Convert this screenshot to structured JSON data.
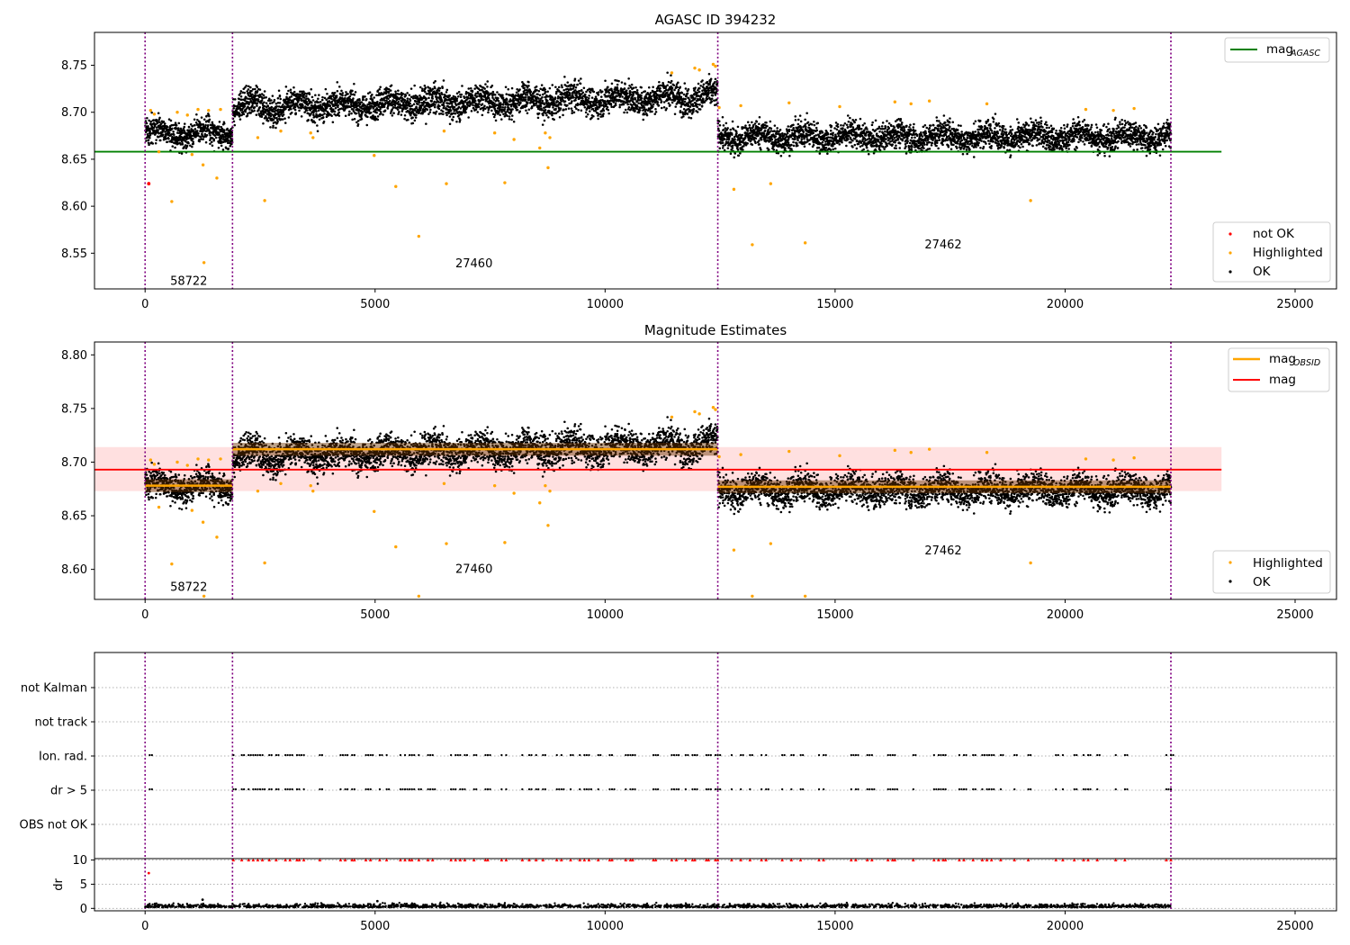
{
  "chart_data": [
    {
      "type": "scatter",
      "title": "AGASC ID 394232",
      "xlim": [
        -1100,
        25900
      ],
      "ylim": [
        8.512,
        8.785
      ],
      "x_ticks": [
        0,
        5000,
        10000,
        15000,
        20000,
        25000
      ],
      "y_ticks": [
        8.55,
        8.6,
        8.65,
        8.7,
        8.75
      ],
      "x_tick_labels": [
        "0",
        "5000",
        "10000",
        "15000",
        "20000",
        "25000"
      ],
      "y_tick_labels": [
        "8.55",
        "8.60",
        "8.65",
        "8.70",
        "8.75"
      ],
      "obsid_boundaries": [
        0,
        1900,
        12450,
        22300
      ],
      "obsid_labels": [
        {
          "text": "58722",
          "x": 950,
          "y": 8.521
        },
        {
          "text": "27460",
          "x": 7150,
          "y": 8.54
        },
        {
          "text": "27462",
          "x": 17350,
          "y": 8.56
        }
      ],
      "segments": [
        {
          "x": [
            0,
            1900
          ],
          "center": 8.677,
          "half_width": 0.012
        },
        {
          "x": [
            1900,
            12450
          ],
          "center": 8.71,
          "half_width": 0.014,
          "trend": 0.012
        },
        {
          "x": [
            12450,
            22300
          ],
          "center": 8.673,
          "half_width": 0.013
        }
      ],
      "reference_lines": [
        {
          "name": "mag_AGASC",
          "value": 8.658,
          "x": [
            -1100,
            23400
          ],
          "color": "#008000"
        }
      ],
      "series": [
        {
          "name": "not OK",
          "color": "#ff0000",
          "points": [
            [
              80,
              8.624
            ]
          ]
        },
        {
          "name": "Highlighted",
          "color": "#ffa500",
          "points": [
            [
              120,
              8.702
            ],
            [
              200,
              8.698
            ],
            [
              300,
              8.658
            ],
            [
              580,
              8.605
            ],
            [
              700,
              8.7
            ],
            [
              920,
              8.697
            ],
            [
              1020,
              8.655
            ],
            [
              1150,
              8.703
            ],
            [
              1260,
              8.644
            ],
            [
              1280,
              8.54
            ],
            [
              1380,
              8.702
            ],
            [
              1560,
              8.63
            ],
            [
              1640,
              8.703
            ],
            [
              2450,
              8.673
            ],
            [
              2600,
              8.606
            ],
            [
              2950,
              8.68
            ],
            [
              3600,
              8.678
            ],
            [
              3650,
              8.673
            ],
            [
              4980,
              8.654
            ],
            [
              5450,
              8.621
            ],
            [
              5950,
              8.568
            ],
            [
              6500,
              8.68
            ],
            [
              6550,
              8.624
            ],
            [
              7600,
              8.678
            ],
            [
              7820,
              8.625
            ],
            [
              8020,
              8.671
            ],
            [
              8580,
              8.662
            ],
            [
              8700,
              8.678
            ],
            [
              8760,
              8.641
            ],
            [
              8800,
              8.673
            ],
            [
              11450,
              8.742
            ],
            [
              11950,
              8.747
            ],
            [
              12050,
              8.745
            ],
            [
              12350,
              8.751
            ],
            [
              12400,
              8.749
            ],
            [
              12480,
              8.705
            ],
            [
              12800,
              8.618
            ],
            [
              12950,
              8.707
            ],
            [
              13200,
              8.559
            ],
            [
              13600,
              8.624
            ],
            [
              14000,
              8.71
            ],
            [
              14350,
              8.561
            ],
            [
              15100,
              8.706
            ],
            [
              16300,
              8.711
            ],
            [
              16650,
              8.709
            ],
            [
              17050,
              8.712
            ],
            [
              18300,
              8.709
            ],
            [
              19250,
              8.606
            ],
            [
              20450,
              8.703
            ],
            [
              21050,
              8.702
            ],
            [
              21500,
              8.704
            ]
          ]
        },
        {
          "name": "OK",
          "color": "#000000",
          "points": []
        }
      ],
      "legends": [
        {
          "position": "upper-right",
          "entries": [
            "mag_AGASC"
          ]
        },
        {
          "position": "lower-right",
          "entries": [
            "not OK",
            "Highlighted",
            "OK"
          ]
        }
      ]
    },
    {
      "type": "scatter",
      "title": "Magnitude Estimates",
      "xlim": [
        -1100,
        25900
      ],
      "ylim": [
        8.572,
        8.812
      ],
      "x_ticks": [
        0,
        5000,
        10000,
        15000,
        20000,
        25000
      ],
      "y_ticks": [
        8.6,
        8.65,
        8.7,
        8.75,
        8.8
      ],
      "x_tick_labels": [
        "0",
        "5000",
        "10000",
        "15000",
        "20000",
        "25000"
      ],
      "y_tick_labels": [
        "8.60",
        "8.65",
        "8.70",
        "8.75",
        "8.80"
      ],
      "obsid_boundaries": [
        0,
        1900,
        12450,
        22300
      ],
      "obsid_labels": [
        {
          "text": "58722",
          "x": 950,
          "y": 8.584
        },
        {
          "text": "27460",
          "x": 7150,
          "y": 8.601
        },
        {
          "text": "27462",
          "x": 17350,
          "y": 8.618
        }
      ],
      "segments": [
        {
          "x": [
            0,
            1900
          ],
          "center": 8.677,
          "half_width": 0.012
        },
        {
          "x": [
            1900,
            12450
          ],
          "center": 8.71,
          "half_width": 0.014,
          "trend": 0.012
        },
        {
          "x": [
            12450,
            22300
          ],
          "center": 8.673,
          "half_width": 0.013
        }
      ],
      "reference_lines": [
        {
          "name": "mag",
          "value": 8.693,
          "x": [
            -1100,
            23400
          ],
          "color": "#ff0000",
          "band": [
            8.673,
            8.714
          ],
          "band_color": "#ffcccc"
        }
      ],
      "mag_obsid": [
        {
          "x": [
            0,
            1900
          ],
          "value": 8.678
        },
        {
          "x": [
            1900,
            12450
          ],
          "value": 8.712
        },
        {
          "x": [
            12450,
            22300
          ],
          "value": 8.677
        }
      ],
      "series": [
        {
          "name": "Highlighted",
          "color": "#ffa500",
          "points": [
            [
              120,
              8.702
            ],
            [
              200,
              8.698
            ],
            [
              300,
              8.658
            ],
            [
              580,
              8.605
            ],
            [
              700,
              8.7
            ],
            [
              920,
              8.697
            ],
            [
              1020,
              8.655
            ],
            [
              1150,
              8.703
            ],
            [
              1260,
              8.644
            ],
            [
              1280,
              8.575
            ],
            [
              1380,
              8.702
            ],
            [
              1560,
              8.63
            ],
            [
              1640,
              8.703
            ],
            [
              2450,
              8.673
            ],
            [
              2600,
              8.606
            ],
            [
              2950,
              8.68
            ],
            [
              3600,
              8.678
            ],
            [
              3650,
              8.673
            ],
            [
              4980,
              8.654
            ],
            [
              5450,
              8.621
            ],
            [
              5950,
              8.575
            ],
            [
              6500,
              8.68
            ],
            [
              6550,
              8.624
            ],
            [
              7600,
              8.678
            ],
            [
              7820,
              8.625
            ],
            [
              8020,
              8.671
            ],
            [
              8580,
              8.662
            ],
            [
              8700,
              8.678
            ],
            [
              8760,
              8.641
            ],
            [
              8800,
              8.673
            ],
            [
              11450,
              8.742
            ],
            [
              11950,
              8.747
            ],
            [
              12050,
              8.745
            ],
            [
              12350,
              8.751
            ],
            [
              12400,
              8.749
            ],
            [
              12480,
              8.705
            ],
            [
              12800,
              8.618
            ],
            [
              12950,
              8.707
            ],
            [
              13200,
              8.575
            ],
            [
              13600,
              8.624
            ],
            [
              14000,
              8.71
            ],
            [
              14350,
              8.575
            ],
            [
              15100,
              8.706
            ],
            [
              16300,
              8.711
            ],
            [
              16650,
              8.709
            ],
            [
              17050,
              8.712
            ],
            [
              18300,
              8.709
            ],
            [
              19250,
              8.606
            ],
            [
              20450,
              8.703
            ],
            [
              21050,
              8.702
            ],
            [
              21500,
              8.704
            ]
          ]
        },
        {
          "name": "OK",
          "color": "#000000",
          "points": []
        }
      ],
      "legends": [
        {
          "position": "upper-right",
          "entries": [
            "mag_OBSID",
            "mag"
          ]
        },
        {
          "position": "lower-right",
          "entries": [
            "Highlighted",
            "OK"
          ]
        }
      ]
    },
    {
      "type": "scatter",
      "title": "",
      "xlim": [
        -1100,
        25900
      ],
      "categories": [
        "OBS not OK",
        "dr > 5",
        "Ion. rad.",
        "not track",
        "not Kalman"
      ],
      "flag_rows": [
        {
          "name": "Ion. rad.",
          "points": [
            100,
            1920,
            2100,
            2250,
            2350,
            2450,
            2550,
            2700,
            2850,
            3050,
            3150,
            3300,
            3350,
            3450,
            3800,
            4250,
            4350,
            4500,
            4550,
            4800,
            4900,
            5100,
            5250,
            5550,
            5650,
            5750,
            5800,
            5950,
            6150,
            6250,
            6650,
            6750,
            6850,
            6950,
            7150,
            7400,
            7450,
            7750,
            7850,
            8200,
            8350,
            8500,
            8650,
            8950,
            9050,
            9250,
            9450,
            9550,
            9650,
            9850,
            10100,
            10150,
            10450,
            10550,
            10600,
            11050,
            11100,
            11450,
            11550,
            11750,
            11900,
            11950,
            12200,
            12250,
            12400,
            12450,
            12750,
            12950,
            13150,
            13400,
            13500,
            13850,
            14050,
            14250,
            14650,
            14750,
            15350,
            15450,
            15700,
            15800,
            16150,
            16250,
            16300,
            16700,
            17150,
            17250,
            17350,
            17400,
            17700,
            17800,
            18000,
            18200,
            18300,
            18400,
            18600,
            18900,
            19200,
            19800,
            19950,
            20200,
            20400,
            20500,
            20700,
            21100,
            21300,
            22200,
            22300
          ]
        },
        {
          "name": "dr > 5",
          "points": [
            100,
            1920,
            2100,
            2250,
            2350,
            2450,
            2550,
            2700,
            2850,
            3050,
            3150,
            3300,
            3350,
            3450,
            3800,
            4250,
            4350,
            4500,
            4550,
            4800,
            4900,
            5100,
            5250,
            5550,
            5650,
            5750,
            5800,
            5950,
            6150,
            6250,
            6650,
            6750,
            6850,
            6950,
            7150,
            7400,
            7450,
            7750,
            7850,
            8200,
            8350,
            8500,
            8650,
            8950,
            9050,
            9250,
            9450,
            9550,
            9650,
            9850,
            10100,
            10150,
            10450,
            10550,
            10600,
            11050,
            11100,
            11450,
            11550,
            11750,
            11900,
            11950,
            12200,
            12250,
            12400,
            12450,
            12750,
            12950,
            13150,
            13400,
            13500,
            13850,
            14050,
            14250,
            14650,
            14750,
            15350,
            15450,
            15700,
            15800,
            16150,
            16250,
            16300,
            16700,
            17150,
            17250,
            17350,
            17400,
            17700,
            17800,
            18000,
            18200,
            18300,
            18400,
            18600,
            18900,
            19200,
            19800,
            19950,
            20200,
            20400,
            20500,
            20700,
            21100,
            21300,
            22200,
            22300
          ]
        }
      ],
      "obsid_boundaries": [
        0,
        1900,
        12450,
        22300
      ]
    },
    {
      "type": "scatter",
      "title": "",
      "ylabel": "dr",
      "xlim": [
        -1100,
        25900
      ],
      "ylim": [
        -0.5,
        10.3
      ],
      "x_ticks": [
        0,
        5000,
        10000,
        15000,
        20000,
        25000
      ],
      "y_ticks": [
        0,
        5,
        10
      ],
      "x_tick_labels": [
        "0",
        "5000",
        "10000",
        "15000",
        "20000",
        "25000"
      ],
      "y_tick_labels": [
        "0",
        "5",
        "10"
      ],
      "threshold_line": 10,
      "clipped_markers": {
        "color": "#ff0000",
        "value": 10
      },
      "obsid_boundaries": [
        0,
        1900,
        12450,
        22300
      ],
      "outliers": [
        [
          80,
          7.3
        ],
        [
          1250,
          1.8
        ],
        [
          5050,
          1.5
        ]
      ]
    }
  ]
}
